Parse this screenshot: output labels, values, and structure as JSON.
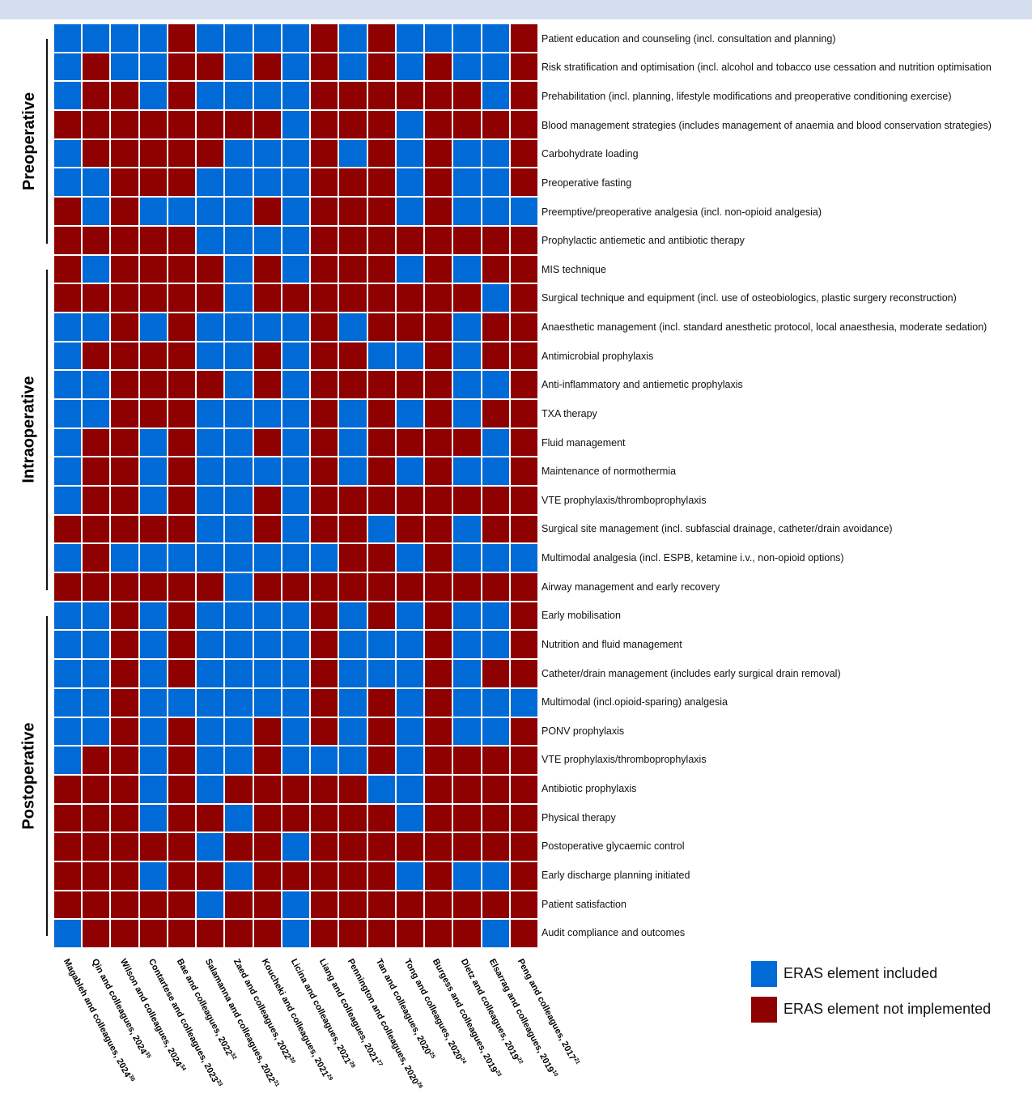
{
  "chart_data": {
    "type": "heatmap",
    "legend": [
      {
        "label": "ERAS element included",
        "value": 1,
        "color": "#006ad6"
      },
      {
        "label": "ERAS element not implemented",
        "value": 0,
        "color": "#8f0000"
      }
    ],
    "legend_position": "bottom-right",
    "groups": [
      {
        "label": "Preoperative",
        "rows": [
          0,
          7
        ]
      },
      {
        "label": "Intraoperative",
        "rows": [
          8,
          19
        ]
      },
      {
        "label": "Postoperative",
        "rows": [
          20,
          31
        ]
      }
    ],
    "columns": [
      {
        "name": "Magableh and colleagues, 2024",
        "ref": "36"
      },
      {
        "name": "Qin and colleagues, 2024",
        "ref": "35"
      },
      {
        "name": "Wilson and colleagues, 2024",
        "ref": "34"
      },
      {
        "name": "Contartese and colleagues, 2023",
        "ref": "33"
      },
      {
        "name": "Bae and colleagues, 2022",
        "ref": "32"
      },
      {
        "name": "Salamanna and colleagues, 2022",
        "ref": "31"
      },
      {
        "name": "Zaed and colleagues, 2022",
        "ref": "30"
      },
      {
        "name": "Koucheki and colleagues, 2021",
        "ref": "29"
      },
      {
        "name": "Licina and colleagues, 2021",
        "ref": "28"
      },
      {
        "name": "Liang and colleagues, 2021",
        "ref": "27"
      },
      {
        "name": "Pennington and colleagues, 2020",
        "ref": "26"
      },
      {
        "name": "Tan and colleagues, 2020",
        "ref": "25"
      },
      {
        "name": "Tong and colleagues, 2020",
        "ref": "24"
      },
      {
        "name": "Burgess and colleagues, 2019",
        "ref": "23"
      },
      {
        "name": "Dietz and colleagues, 2019",
        "ref": "22"
      },
      {
        "name": "Elsarrag and colleagues, 2019",
        "ref": "10"
      },
      {
        "name": "Peng and colleagues, 2017",
        "ref": "21"
      }
    ],
    "rows": [
      "Patient education and counseling (incl. consultation and planning)",
      "Risk stratification and optimisation (incl. alcohol and tobacco use cessation and nutrition optimisation",
      "Prehabilitation (incl. planning, lifestyle modifications and preoperative conditioning exercise)",
      "Blood management strategies (includes management of anaemia and blood conservation strategies)",
      "Carbohydrate loading",
      "Preoperative fasting",
      "Preemptive/preoperative analgesia (incl. non-opioid analgesia)",
      "Prophylactic antiemetic and antibiotic therapy",
      "MIS technique",
      "Surgical technique and equipment (incl. use of osteobiologics, plastic surgery reconstruction)",
      "Anaesthetic management (incl. standard anesthetic protocol, local anaesthesia, moderate sedation)",
      "Antimicrobial prophylaxis",
      "Anti-inflammatory and antiemetic prophylaxis",
      "TXA therapy",
      "Fluid management",
      "Maintenance of normothermia",
      "VTE prophylaxis/thromboprophylaxis",
      "Surgical site management (incl. subfascial drainage, catheter/drain avoidance)",
      "Multimodal analgesia (incl. ESPB, ketamine i.v., non-opioid options)",
      "Airway management and early recovery",
      "Early mobilisation",
      "Nutrition and fluid management",
      "Catheter/drain management (includes early surgical drain removal)",
      "Multimodal (incl.opioid-sparing) analgesia",
      "PONV prophylaxis",
      "VTE prophylaxis/thromboprophylaxis",
      "Antibiotic prophylaxis",
      "Physical therapy",
      "Postoperative glycaemic control",
      "Early discharge planning initiated",
      "Patient satisfaction",
      "Audit compliance and outcomes"
    ],
    "values": [
      "BBBBRBBBBRBRBBBBR",
      "BRBBRRBRBRBRBRBBR",
      "BRRBRBBBBRRRRRRBR",
      "RRRRRRRRBRRRBRRRR",
      "BRRRRRBBBRBRBRBBR",
      "BBRRRBBBBRRRBRBBR",
      "RBRBBBBRBRRRBRBBB",
      "RRRRRBBBBRRRRRRRR",
      "RBRRRRBRBRRRBRBRR",
      "RRRRRRBRRRRRRRRBR",
      "BBRBRBBBBRBRRRBRR",
      "BRRRRBBRBRRBBRBRR",
      "BBRRRRBRBRRRRRBBR",
      "BBRRRBBBBRBRBRBRR",
      "BRRBRBBRBRBRRRRBR",
      "BRRBRBBBBRBRBRBBR",
      "BRRBRBBRBRRRRRRRR",
      "RRRRRBBRBRRBRRBRR",
      "BRBBBBBBBBRRBRBBB",
      "RRRRRRBRRRRRRRRRR",
      "BBRBRBBBBRBRBRBBR",
      "BBRBRBBBBRBBBRBBR",
      "BBRBRBBBBRBBBRBRR",
      "BBRBBBBBBRBRBRBBB",
      "BBRBRBBRBRBRBRBBR",
      "BRRBRBBRBBBRBRRRR",
      "RRRBRBRRRRRBBRRRR",
      "RRRBRRBRRRRRBRRRR",
      "RRRRRBRRBRRRRRRRR",
      "RRRBRRBRRRRRBRBBR",
      "RRRRRBRRBRRRRRRRR",
      "BRRRRRRRBRRRRRRBR"
    ],
    "value_key": {
      "B": "ERAS element included",
      "R": "ERAS element not implemented"
    }
  }
}
